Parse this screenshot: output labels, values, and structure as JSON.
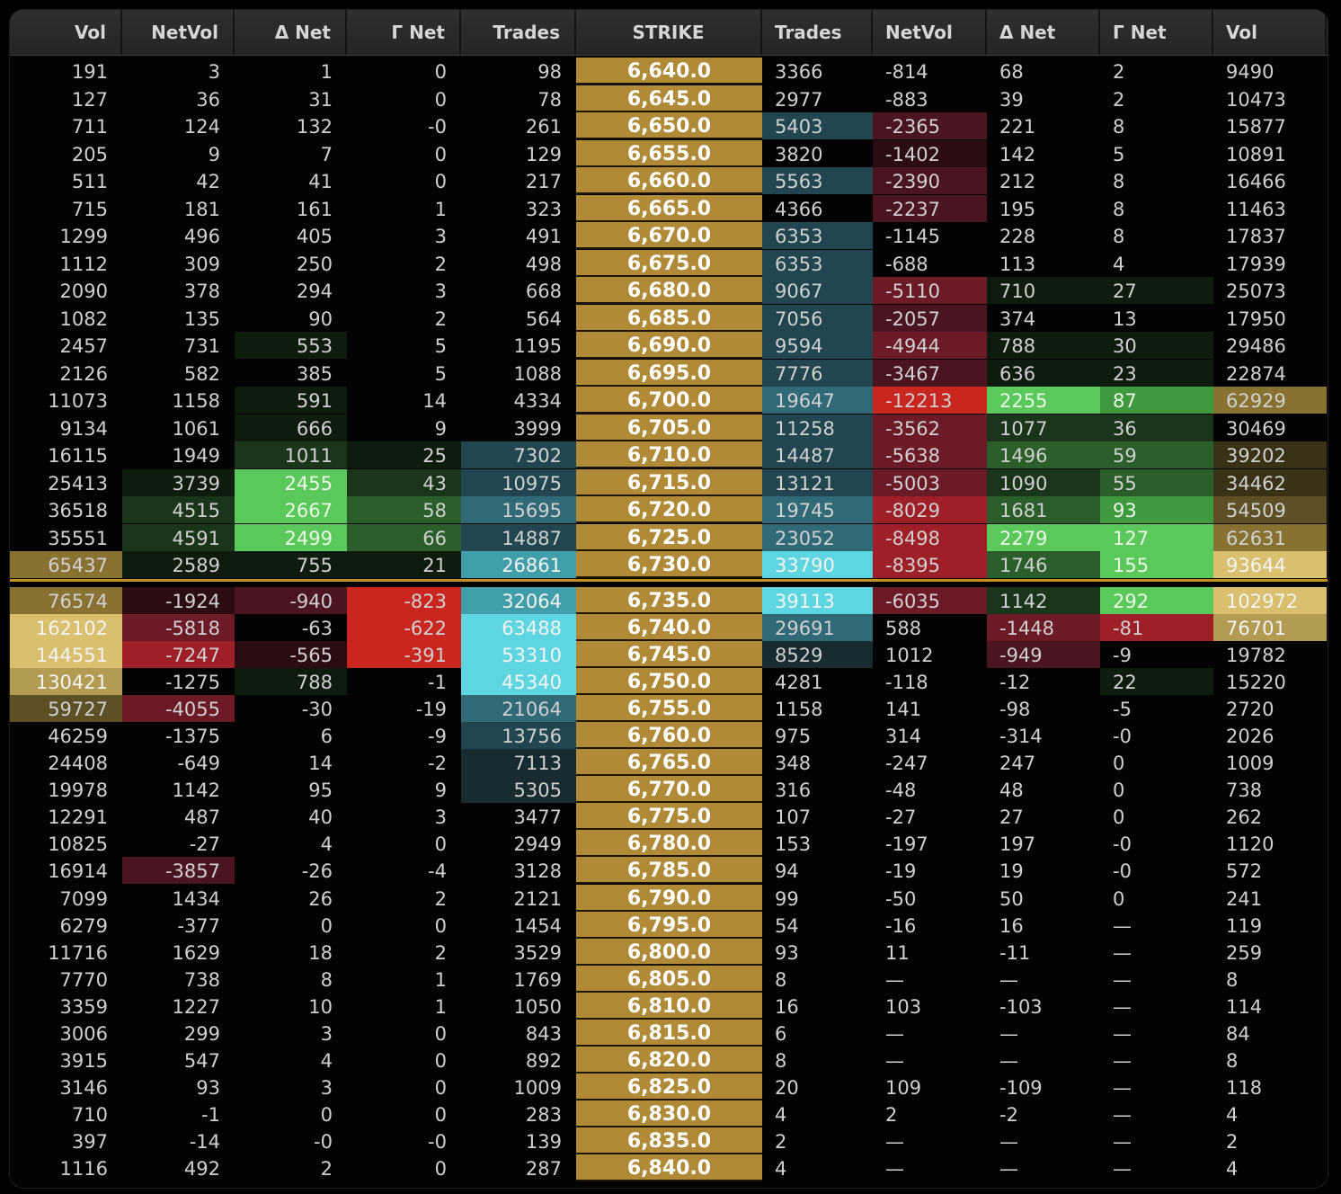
{
  "headers": [
    "Vol",
    "NetVol",
    "Δ Net",
    "Γ Net",
    "Trades",
    "STRIKE",
    "Trades",
    "NetVol",
    "Δ Net",
    "Γ Net",
    "Vol"
  ],
  "colors": {
    "strike": "#b08a36",
    "green_scale": [
      "#0e1c0e",
      "#1a351a",
      "#2a5e2a",
      "#3f9a3f",
      "#5ac85a"
    ],
    "red_scale": [
      "#2a0c12",
      "#4a1420",
      "#6c1a26",
      "#9e1f28",
      "#c8261e"
    ],
    "cyan_scale": [
      "#172b30",
      "#21464f",
      "#2f6a76",
      "#3f9eaa",
      "#5dd6e2"
    ],
    "gold_scale": [
      "#3a3216",
      "#5e5025",
      "#887232",
      "#b39b52",
      "#d9bf6e"
    ]
  },
  "rows": [
    {
      "c": [
        "191",
        "3",
        "1",
        "0",
        "98",
        "6,640.0",
        "3366",
        "-814",
        "68",
        "2",
        "9490"
      ]
    },
    {
      "c": [
        "127",
        "36",
        "31",
        "0",
        "78",
        "6,645.0",
        "2977",
        "-883",
        "39",
        "2",
        "10473"
      ]
    },
    {
      "c": [
        "711",
        "124",
        "132",
        "-0",
        "261",
        "6,650.0",
        "5403",
        "-2365",
        "221",
        "8",
        "15877"
      ],
      "h": {
        "6": "c1",
        "7": "r1"
      }
    },
    {
      "c": [
        "205",
        "9",
        "7",
        "0",
        "129",
        "6,655.0",
        "3820",
        "-1402",
        "142",
        "5",
        "10891"
      ],
      "h": {
        "7": "r0"
      }
    },
    {
      "c": [
        "511",
        "42",
        "41",
        "0",
        "217",
        "6,660.0",
        "5563",
        "-2390",
        "212",
        "8",
        "16466"
      ],
      "h": {
        "6": "c1",
        "7": "r1"
      }
    },
    {
      "c": [
        "715",
        "181",
        "161",
        "1",
        "323",
        "6,665.0",
        "4366",
        "-2237",
        "195",
        "8",
        "11463"
      ],
      "h": {
        "7": "r1"
      }
    },
    {
      "c": [
        "1299",
        "496",
        "405",
        "3",
        "491",
        "6,670.0",
        "6353",
        "-1145",
        "228",
        "8",
        "17837"
      ],
      "h": {
        "6": "c1"
      }
    },
    {
      "c": [
        "1112",
        "309",
        "250",
        "2",
        "498",
        "6,675.0",
        "6353",
        "-688",
        "113",
        "4",
        "17939"
      ],
      "h": {
        "6": "c1"
      }
    },
    {
      "c": [
        "2090",
        "378",
        "294",
        "3",
        "668",
        "6,680.0",
        "9067",
        "-5110",
        "710",
        "27",
        "25073"
      ],
      "h": {
        "6": "c1",
        "7": "r2",
        "8": "g0",
        "9": "g0"
      }
    },
    {
      "c": [
        "1082",
        "135",
        "90",
        "2",
        "564",
        "6,685.0",
        "7056",
        "-2057",
        "374",
        "13",
        "17950"
      ],
      "h": {
        "6": "c1",
        "7": "r1"
      }
    },
    {
      "c": [
        "2457",
        "731",
        "553",
        "5",
        "1195",
        "6,690.0",
        "9594",
        "-4944",
        "788",
        "30",
        "29486"
      ],
      "h": {
        "2": "g0",
        "6": "c1",
        "7": "r2",
        "8": "g0",
        "9": "g0"
      }
    },
    {
      "c": [
        "2126",
        "582",
        "385",
        "5",
        "1088",
        "6,695.0",
        "7776",
        "-3467",
        "636",
        "23",
        "22874"
      ],
      "h": {
        "6": "c1",
        "7": "r1",
        "8": "g0",
        "9": "g0"
      }
    },
    {
      "c": [
        "11073",
        "1158",
        "591",
        "14",
        "4334",
        "6,700.0",
        "19647",
        "-12213",
        "2255",
        "87",
        "62929"
      ],
      "h": {
        "2": "g0",
        "6": "c2",
        "7": "r4",
        "8": "g4",
        "9": "g3",
        "10": "y2"
      }
    },
    {
      "c": [
        "9134",
        "1061",
        "666",
        "9",
        "3999",
        "6,705.0",
        "11258",
        "-3562",
        "1077",
        "36",
        "30469"
      ],
      "h": {
        "2": "g0",
        "6": "c1",
        "7": "r2",
        "8": "g1",
        "9": "g1"
      }
    },
    {
      "c": [
        "16115",
        "1949",
        "1011",
        "25",
        "7302",
        "6,710.0",
        "14487",
        "-5638",
        "1496",
        "59",
        "39202"
      ],
      "h": {
        "2": "g1",
        "3": "g0",
        "4": "c1",
        "6": "c1",
        "7": "r2",
        "8": "g2",
        "9": "g2",
        "10": "y0"
      }
    },
    {
      "c": [
        "25413",
        "3739",
        "2455",
        "43",
        "10975",
        "6,715.0",
        "13121",
        "-5003",
        "1090",
        "55",
        "34462"
      ],
      "h": {
        "1": "g0",
        "2": "g4",
        "3": "g1",
        "4": "c1",
        "6": "c1",
        "7": "r2",
        "8": "g1",
        "9": "g2",
        "10": "y0"
      }
    },
    {
      "c": [
        "36518",
        "4515",
        "2667",
        "58",
        "15695",
        "6,720.0",
        "19745",
        "-8029",
        "1681",
        "93",
        "54509"
      ],
      "h": {
        "1": "g1",
        "2": "g4",
        "3": "g2",
        "4": "c2",
        "6": "c2",
        "7": "r3",
        "8": "g2",
        "9": "g3",
        "10": "y1"
      }
    },
    {
      "c": [
        "35551",
        "4591",
        "2499",
        "66",
        "14887",
        "6,725.0",
        "23052",
        "-8498",
        "2279",
        "127",
        "62631"
      ],
      "h": {
        "1": "g1",
        "2": "g4",
        "3": "g2",
        "4": "c1",
        "6": "c2",
        "7": "r3",
        "8": "g4",
        "9": "g4",
        "10": "y2"
      }
    },
    {
      "c": [
        "65437",
        "2589",
        "755",
        "21",
        "26861",
        "6,730.0",
        "33790",
        "-8395",
        "1746",
        "155",
        "93644"
      ],
      "h": {
        "0": "y2",
        "1": "g0",
        "2": "g0",
        "3": "g0",
        "4": "c3",
        "6": "c4",
        "7": "r3",
        "8": "g2",
        "9": "g4",
        "10": "y4"
      }
    },
    {
      "c": [
        "76574",
        "-1924",
        "-940",
        "-823",
        "32064",
        "6,735.0",
        "39113",
        "-6035",
        "1142",
        "292",
        "102972"
      ],
      "h": {
        "0": "y2",
        "1": "r0",
        "2": "r1",
        "3": "r4",
        "4": "c3",
        "6": "c4",
        "7": "r2",
        "8": "g1",
        "9": "g4",
        "10": "y4"
      }
    },
    {
      "c": [
        "162102",
        "-5818",
        "-63",
        "-622",
        "63488",
        "6,740.0",
        "29691",
        "588",
        "-1448",
        "-81",
        "76701"
      ],
      "h": {
        "0": "y4",
        "1": "r2",
        "3": "r4",
        "4": "c4",
        "6": "c2",
        "8": "r2",
        "9": "r3",
        "10": "y3"
      }
    },
    {
      "c": [
        "144551",
        "-7247",
        "-565",
        "-391",
        "53310",
        "6,745.0",
        "8529",
        "1012",
        "-949",
        "-9",
        "19782"
      ],
      "h": {
        "0": "y4",
        "1": "r3",
        "2": "r0",
        "3": "r4",
        "4": "c4",
        "6": "c0",
        "8": "r1"
      }
    },
    {
      "c": [
        "130421",
        "-1275",
        "788",
        "-1",
        "45340",
        "6,750.0",
        "4281",
        "-118",
        "-12",
        "22",
        "15220"
      ],
      "h": {
        "0": "y3",
        "2": "g0",
        "4": "c4",
        "9": "g0"
      }
    },
    {
      "c": [
        "59727",
        "-4055",
        "-30",
        "-19",
        "21064",
        "6,755.0",
        "1158",
        "141",
        "-98",
        "-5",
        "2720"
      ],
      "h": {
        "0": "y1",
        "1": "r2",
        "4": "c2"
      }
    },
    {
      "c": [
        "46259",
        "-1375",
        "6",
        "-9",
        "13756",
        "6,760.0",
        "975",
        "314",
        "-314",
        "-0",
        "2026"
      ],
      "h": {
        "4": "c1"
      }
    },
    {
      "c": [
        "24408",
        "-649",
        "14",
        "-2",
        "7113",
        "6,765.0",
        "348",
        "-247",
        "247",
        "0",
        "1009"
      ],
      "h": {
        "4": "c0"
      }
    },
    {
      "c": [
        "19978",
        "1142",
        "95",
        "9",
        "5305",
        "6,770.0",
        "316",
        "-48",
        "48",
        "0",
        "738"
      ],
      "h": {
        "4": "c0"
      }
    },
    {
      "c": [
        "12291",
        "487",
        "40",
        "3",
        "3477",
        "6,775.0",
        "107",
        "-27",
        "27",
        "0",
        "262"
      ]
    },
    {
      "c": [
        "10825",
        "-27",
        "4",
        "0",
        "2949",
        "6,780.0",
        "153",
        "-197",
        "197",
        "-0",
        "1120"
      ]
    },
    {
      "c": [
        "16914",
        "-3857",
        "-26",
        "-4",
        "3128",
        "6,785.0",
        "94",
        "-19",
        "19",
        "-0",
        "572"
      ],
      "h": {
        "1": "r1"
      }
    },
    {
      "c": [
        "7099",
        "1434",
        "26",
        "2",
        "2121",
        "6,790.0",
        "99",
        "-50",
        "50",
        "0",
        "241"
      ]
    },
    {
      "c": [
        "6279",
        "-377",
        "0",
        "0",
        "1454",
        "6,795.0",
        "54",
        "-16",
        "16",
        "—",
        "119"
      ]
    },
    {
      "c": [
        "11716",
        "1629",
        "18",
        "2",
        "3529",
        "6,800.0",
        "93",
        "11",
        "-11",
        "—",
        "259"
      ]
    },
    {
      "c": [
        "7770",
        "738",
        "8",
        "1",
        "1769",
        "6,805.0",
        "8",
        "—",
        "—",
        "—",
        "8"
      ]
    },
    {
      "c": [
        "3359",
        "1227",
        "10",
        "1",
        "1050",
        "6,810.0",
        "16",
        "103",
        "-103",
        "—",
        "114"
      ]
    },
    {
      "c": [
        "3006",
        "299",
        "3",
        "0",
        "843",
        "6,815.0",
        "6",
        "—",
        "—",
        "—",
        "84"
      ]
    },
    {
      "c": [
        "3915",
        "547",
        "4",
        "0",
        "892",
        "6,820.0",
        "8",
        "—",
        "—",
        "—",
        "8"
      ]
    },
    {
      "c": [
        "3146",
        "93",
        "3",
        "0",
        "1009",
        "6,825.0",
        "20",
        "109",
        "-109",
        "—",
        "118"
      ]
    },
    {
      "c": [
        "710",
        "-1",
        "0",
        "0",
        "283",
        "6,830.0",
        "4",
        "2",
        "-2",
        "—",
        "4"
      ]
    },
    {
      "c": [
        "397",
        "-14",
        "-0",
        "-0",
        "139",
        "6,835.0",
        "2",
        "—",
        "—",
        "—",
        "2"
      ]
    },
    {
      "c": [
        "1116",
        "492",
        "2",
        "0",
        "287",
        "6,840.0",
        "4",
        "—",
        "—",
        "—",
        "4"
      ]
    }
  ]
}
